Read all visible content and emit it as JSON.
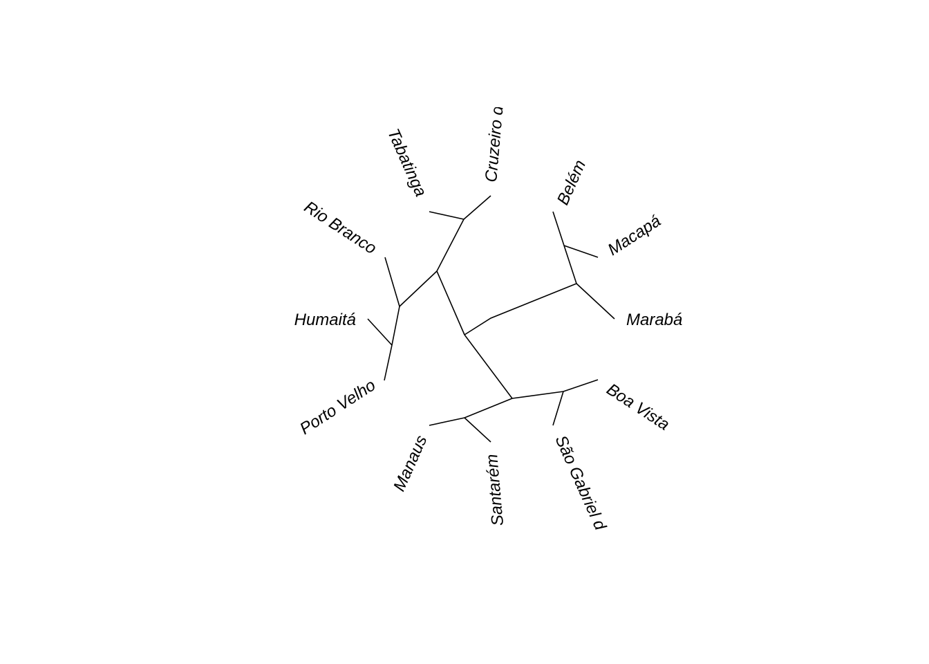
{
  "tree": {
    "type": "unrooted-phylogram",
    "tips": [
      {
        "id": "cruzeiro",
        "label": "Cruzeiro d"
      },
      {
        "id": "tabatinga",
        "label": "Tabatinga"
      },
      {
        "id": "riobranco",
        "label": "Rio Branco"
      },
      {
        "id": "humaita",
        "label": "Humaitá"
      },
      {
        "id": "portovelho",
        "label": "Porto Velho"
      },
      {
        "id": "manaus",
        "label": "Manaus"
      },
      {
        "id": "santarem",
        "label": "Santarém"
      },
      {
        "id": "saogabriel",
        "label": "São Gabriel d"
      },
      {
        "id": "boavista",
        "label": "Boa Vista"
      },
      {
        "id": "maraba",
        "label": "Marabá"
      },
      {
        "id": "macapa",
        "label": "Macapá"
      },
      {
        "id": "belem",
        "label": "Belém"
      }
    ]
  }
}
